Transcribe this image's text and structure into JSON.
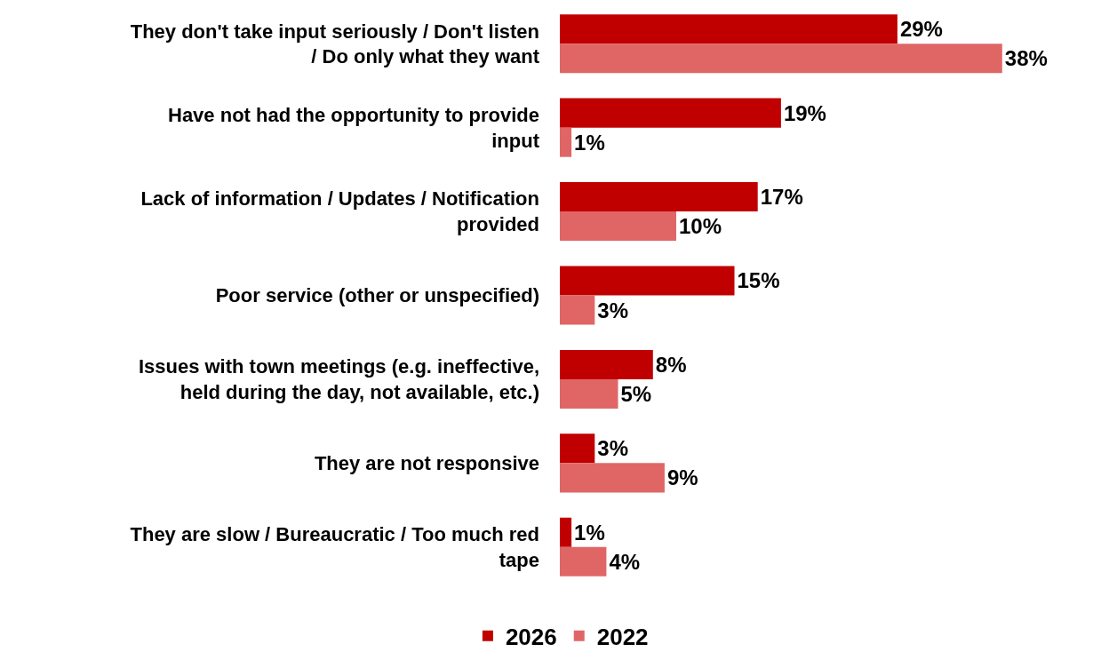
{
  "chart_data": {
    "type": "bar",
    "orientation": "horizontal",
    "categories": [
      "They don't take input seriously / Don't listen\n/ Do only what they want",
      "Have not had the opportunity to provide\ninput",
      "Lack of information / Updates / Notification\nprovided",
      "Poor service (other or unspecified)",
      "Issues with town meetings (e.g. ineffective,\nheld during the day, not available, etc.)",
      "They are not responsive",
      "They are slow / Bureaucratic / Too much red\ntape"
    ],
    "series": [
      {
        "name": "2026",
        "color": "#c00000",
        "values": [
          29,
          19,
          17,
          15,
          8,
          3,
          1
        ],
        "value_labels": [
          "29%",
          "19%",
          "17%",
          "15%",
          "8%",
          "3%",
          "1%"
        ]
      },
      {
        "name": "2022",
        "color": "#e06666",
        "values": [
          38,
          1,
          10,
          3,
          5,
          9,
          4
        ],
        "value_labels": [
          "38%",
          "1%",
          "10%",
          "3%",
          "5%",
          "9%",
          "4%"
        ]
      }
    ],
    "tick_labels": "y",
    "legend": "bottom"
  }
}
